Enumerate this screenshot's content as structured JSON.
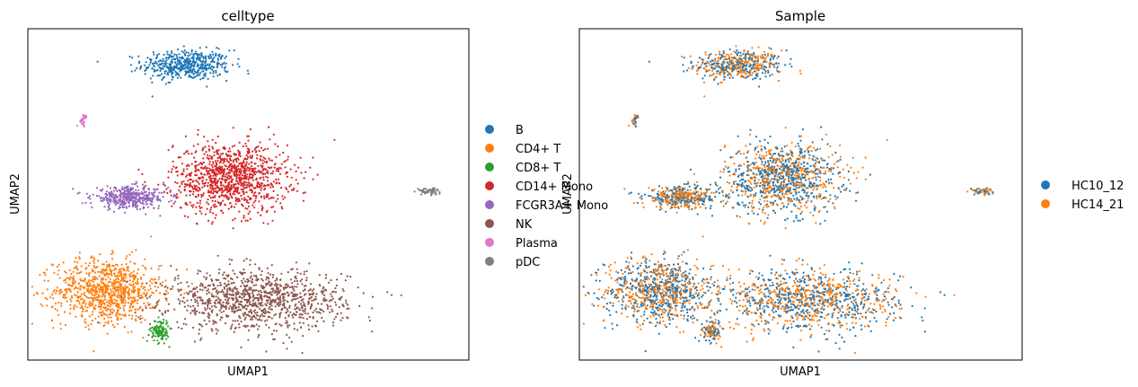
{
  "chart_data": [
    {
      "type": "scatter",
      "title": "celltype",
      "xlabel": "UMAP1",
      "ylabel": "UMAP2",
      "xlim": [
        0,
        10
      ],
      "ylim": [
        0,
        10
      ],
      "ticks": false,
      "legend_location": "right-outside",
      "legend": [
        {
          "label": "B",
          "color": "#1f77b4"
        },
        {
          "label": "CD4+ T",
          "color": "#ff7f0e"
        },
        {
          "label": "CD8+ T",
          "color": "#2ca02c"
        },
        {
          "label": "CD14+ Mono",
          "color": "#d62728"
        },
        {
          "label": "FCGR3A+ Mono",
          "color": "#9467bd"
        },
        {
          "label": "NK",
          "color": "#8c564b"
        },
        {
          "label": "Plasma",
          "color": "#e377c2"
        },
        {
          "label": "pDC",
          "color": "#7f7f7f"
        }
      ],
      "clusters": [
        {
          "label": "B",
          "center": [
            3.6,
            8.9
          ],
          "spread": [
            1.0,
            0.45
          ],
          "n": 500
        },
        {
          "label": "CD4+ T",
          "center": [
            1.8,
            2.1
          ],
          "spread": [
            1.2,
            0.95
          ],
          "n": 900
        },
        {
          "label": "CD8+ T",
          "center": [
            3.0,
            0.9
          ],
          "spread": [
            0.2,
            0.35
          ],
          "n": 120
        },
        {
          "label": "CD14+ Mono",
          "center": [
            4.6,
            5.5
          ],
          "spread": [
            1.3,
            1.05
          ],
          "n": 1100
        },
        {
          "label": "FCGR3A+ Mono",
          "center": [
            2.3,
            4.9
          ],
          "spread": [
            0.85,
            0.32
          ],
          "n": 420
        },
        {
          "label": "NK",
          "center": [
            5.2,
            1.8
          ],
          "spread": [
            2.0,
            0.9
          ],
          "n": 1100
        },
        {
          "label": "Plasma",
          "center": [
            1.25,
            7.25
          ],
          "spread": [
            0.1,
            0.18
          ],
          "n": 30
        },
        {
          "label": "pDC",
          "center": [
            9.1,
            5.1
          ],
          "spread": [
            0.25,
            0.1
          ],
          "n": 60
        }
      ]
    },
    {
      "type": "scatter",
      "title": "Sample",
      "xlabel": "UMAP1",
      "ylabel": "UMAP2",
      "xlim": [
        0,
        10
      ],
      "ylim": [
        0,
        10
      ],
      "ticks": false,
      "legend_location": "right-outside",
      "legend": [
        {
          "label": "HC10_12",
          "color": "#1f77b4"
        },
        {
          "label": "HC14_21",
          "color": "#ff7f0e"
        }
      ],
      "mixing": {
        "HC10_12": 0.5,
        "HC14_21": 0.5
      }
    }
  ]
}
